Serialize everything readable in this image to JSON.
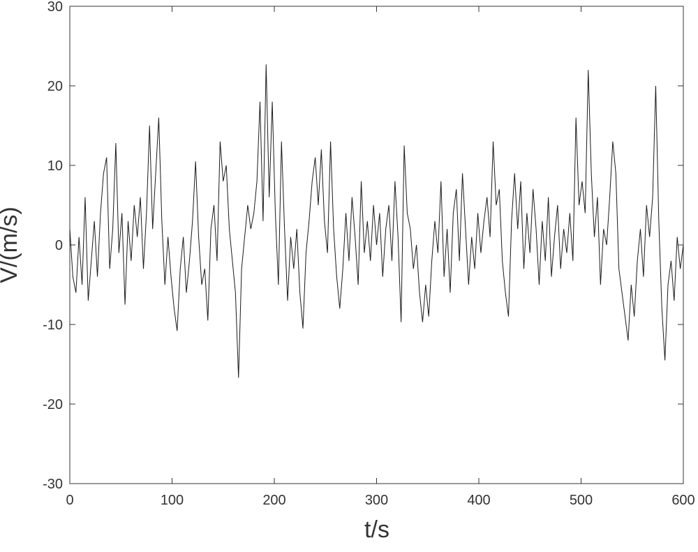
{
  "chart_data": {
    "type": "line",
    "xlabel": "t/s",
    "ylabel": "V/(m/s)",
    "x": [
      0,
      3,
      6,
      9,
      12,
      15,
      18,
      21,
      24,
      27,
      30,
      33,
      36,
      39,
      42,
      45,
      48,
      51,
      54,
      57,
      60,
      63,
      66,
      69,
      72,
      75,
      78,
      81,
      84,
      87,
      90,
      93,
      96,
      99,
      102,
      105,
      108,
      111,
      114,
      117,
      120,
      123,
      126,
      129,
      132,
      135,
      138,
      141,
      144,
      147,
      150,
      153,
      156,
      159,
      162,
      165,
      168,
      171,
      174,
      177,
      180,
      183,
      186,
      189,
      192,
      195,
      198,
      201,
      204,
      207,
      210,
      213,
      216,
      219,
      222,
      225,
      228,
      231,
      234,
      237,
      240,
      243,
      246,
      249,
      252,
      255,
      258,
      261,
      264,
      267,
      270,
      273,
      276,
      279,
      282,
      285,
      288,
      291,
      294,
      297,
      300,
      303,
      306,
      309,
      312,
      315,
      318,
      321,
      324,
      327,
      330,
      333,
      336,
      339,
      342,
      345,
      348,
      351,
      354,
      357,
      360,
      363,
      366,
      369,
      372,
      375,
      378,
      381,
      384,
      387,
      390,
      393,
      396,
      399,
      402,
      405,
      408,
      411,
      414,
      417,
      420,
      423,
      426,
      429,
      432,
      435,
      438,
      441,
      444,
      447,
      450,
      453,
      456,
      459,
      462,
      465,
      468,
      471,
      474,
      477,
      480,
      483,
      486,
      489,
      492,
      495,
      498,
      501,
      504,
      507,
      510,
      513,
      516,
      519,
      522,
      525,
      528,
      531,
      534,
      537,
      540,
      543,
      546,
      549,
      552,
      555,
      558,
      561,
      564,
      567,
      570,
      573,
      576,
      579,
      582,
      585,
      588,
      591,
      594,
      597,
      600
    ],
    "values": [
      2,
      -4,
      -6,
      1,
      -5,
      6,
      -7,
      -2,
      3,
      -4,
      4,
      9,
      11,
      -3,
      2,
      12.8,
      -1,
      4,
      -7.5,
      3,
      -2,
      5,
      1,
      6,
      -3,
      4,
      15,
      2,
      9,
      16,
      3,
      -5,
      1,
      -4,
      -8,
      -10.8,
      -3,
      1,
      -6,
      -2,
      3,
      10.5,
      1,
      -5,
      -3,
      -9.5,
      2,
      5,
      -2,
      13,
      8,
      10,
      2,
      -2,
      -6,
      -16.7,
      -3,
      1,
      5,
      2,
      4,
      8,
      18,
      3,
      22.7,
      6,
      18,
      4,
      -5,
      13,
      2,
      -7,
      1,
      -3,
      2,
      -6,
      -10.5,
      -1,
      3,
      8,
      11,
      5,
      12,
      3,
      -1,
      13,
      2,
      -4,
      -8,
      -3,
      4,
      -2,
      6,
      1,
      -5,
      8,
      -1,
      3,
      -2,
      5,
      0,
      4,
      -4,
      2,
      5,
      -2,
      8,
      1,
      -9.7,
      12.5,
      4,
      2,
      -3,
      0,
      -6,
      -9.7,
      -5,
      -9,
      -2,
      3,
      -1,
      8,
      -4,
      2,
      -6,
      4,
      7,
      -2,
      9,
      2,
      -5,
      1,
      -3,
      4,
      -1,
      3,
      6,
      1,
      13,
      5,
      7,
      -2,
      -6,
      -9,
      3,
      9,
      2,
      8,
      -3,
      4,
      -1,
      7,
      2,
      -5,
      3,
      -2,
      6,
      -4,
      1,
      5,
      -3,
      2,
      -1,
      4,
      -2,
      16,
      5,
      8,
      4,
      22,
      9,
      1,
      6,
      -5,
      2,
      0,
      6,
      13,
      9,
      -3,
      -6,
      -9,
      -12,
      -5,
      -9,
      -2,
      2,
      -4,
      5,
      1,
      6,
      20,
      3,
      -8,
      -14.5,
      -5,
      -2,
      -7,
      1,
      -3,
      0
    ],
    "color": "#1a1a1a",
    "xlim": [
      0,
      600
    ],
    "xticks": [
      0,
      100,
      200,
      300,
      400,
      500,
      600
    ],
    "ylim": [
      -30,
      30
    ],
    "yticks": [
      -30,
      -20,
      -10,
      0,
      10,
      20,
      30
    ],
    "grid": false
  }
}
